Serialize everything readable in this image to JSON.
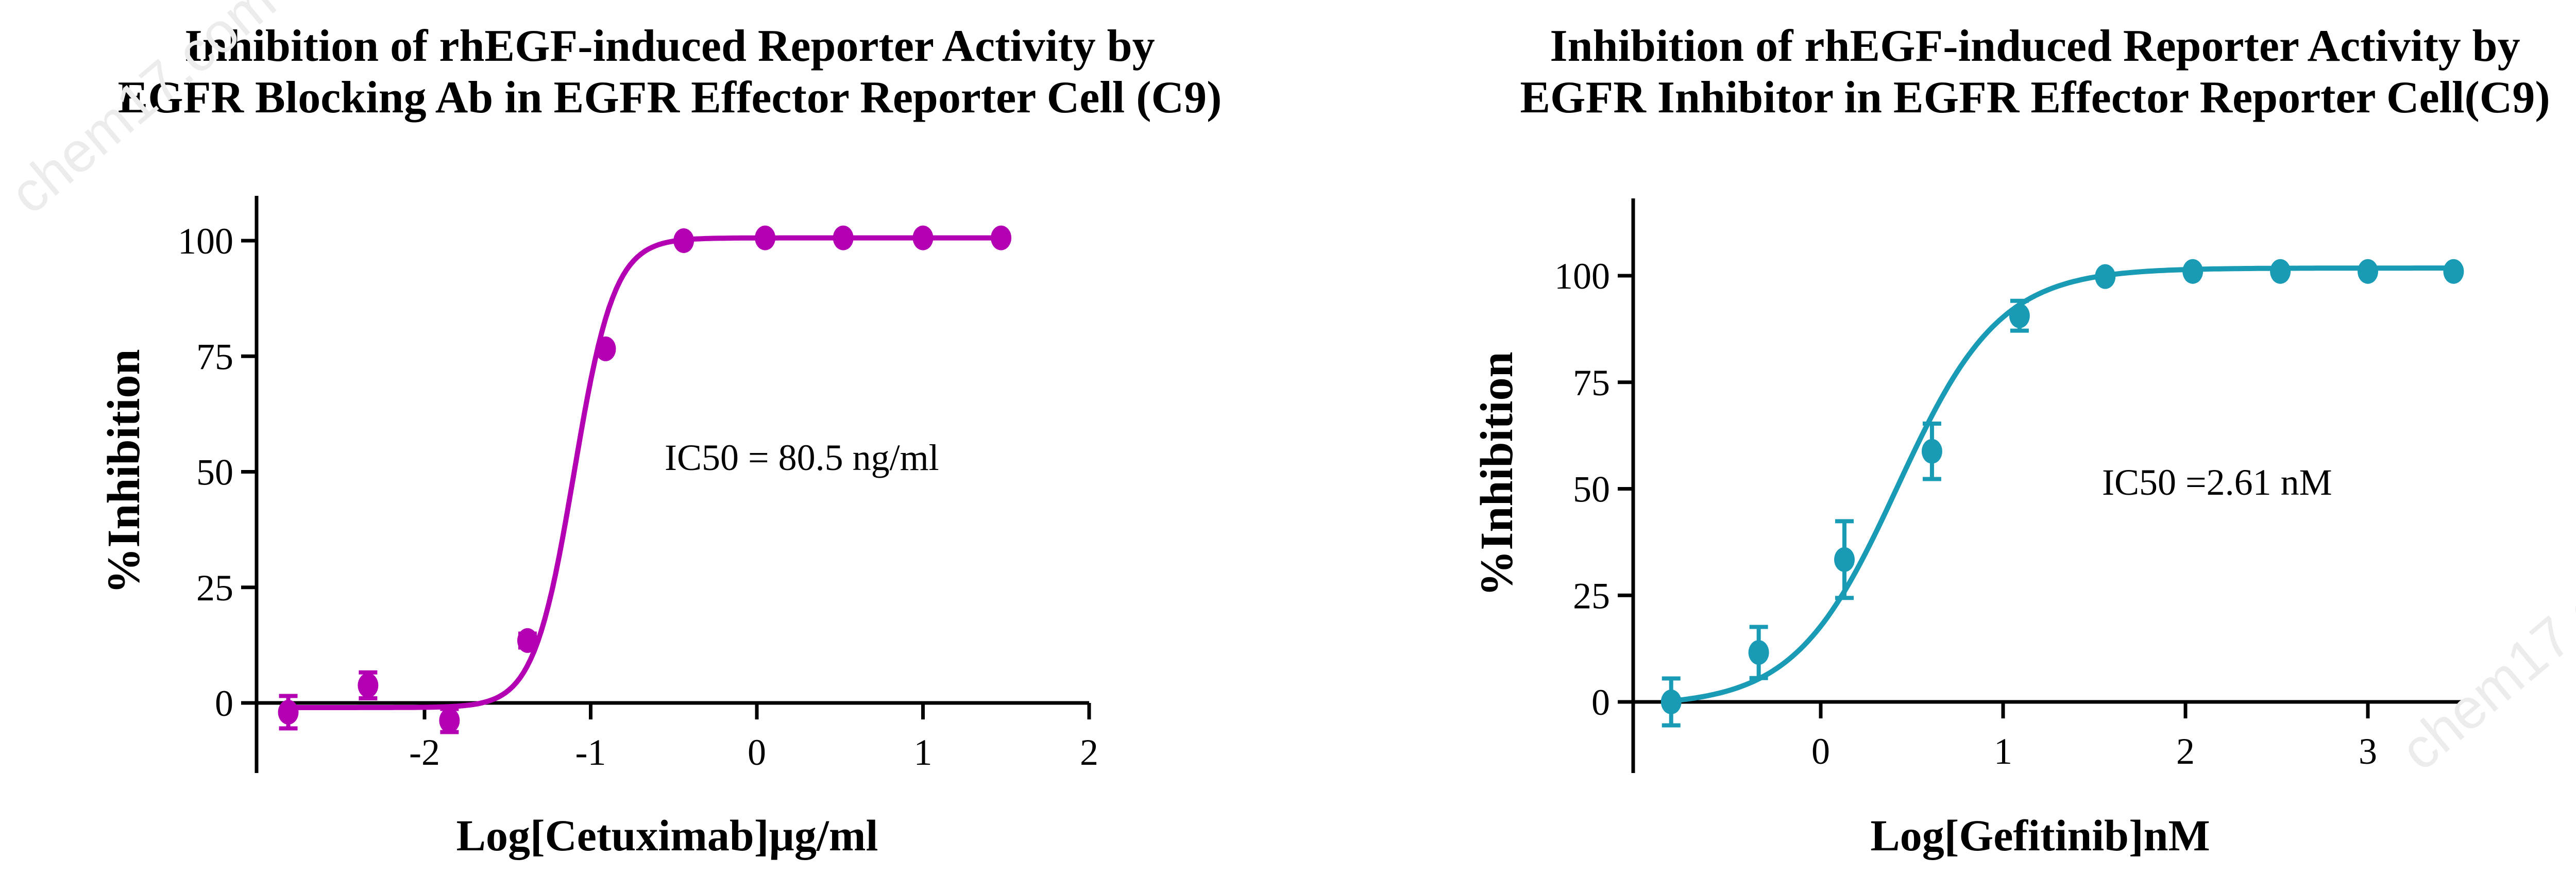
{
  "charts": [
    {
      "title_line1": "Inhibition of rhEGF-induced Reporter Activity by",
      "title_line2": "EGFR Blocking Ab in EGFR Effector Reporter Cell (C9)",
      "xlabel": "Log[Cetuximab]µg/ml",
      "ylabel": "%Inhibition",
      "annotation": "IC50 = 80.5 ng/ml",
      "color": "#B300B3"
    },
    {
      "title_line1": "Inhibition of rhEGF-induced Reporter Activity by",
      "title_line2": "EGFR Inhibitor in EGFR Effector Reporter Cell(C9)",
      "xlabel": "Log[Gefitinib]nM",
      "ylabel": "%Inhibition",
      "annotation": "IC50 =2.61 nM",
      "color": "#1A9BB5"
    }
  ],
  "watermark": "chem17.com",
  "chart_data": [
    {
      "type": "scatter",
      "title": "Inhibition of rhEGF-induced Reporter Activity by EGFR Blocking Ab in EGFR Effector Reporter Cell (C9)",
      "xlabel": "Log[Cetuximab]µg/ml",
      "ylabel": "%Inhibition",
      "xlim": [
        -3.1,
        2
      ],
      "ylim": [
        -8,
        110
      ],
      "xticks": [
        -2,
        -1,
        0,
        1,
        2
      ],
      "yticks": [
        0,
        25,
        50,
        75,
        100
      ],
      "x": [
        -2.82,
        -2.34,
        -1.85,
        -1.38,
        -0.91,
        -0.44,
        0.05,
        0.52,
        1.0,
        1.47
      ],
      "y": [
        -2,
        3.8,
        -3.8,
        13.5,
        76.6,
        100,
        100.6,
        100.6,
        100.6,
        100.6
      ],
      "error": [
        3.5,
        2.8,
        2.5,
        1.5,
        0,
        0,
        0,
        0,
        0,
        0
      ],
      "fit": "4-parameter logistic",
      "annotation": "IC50 = 80.5 ng/ml",
      "grid": false,
      "legend": null
    },
    {
      "type": "scatter",
      "title": "Inhibition of rhEGF-induced Reporter Activity by EGFR Inhibitor in EGFR Effector Reporter Cell(C9)",
      "xlabel": "Log[Gefitinib]nM",
      "ylabel": "%Inhibition",
      "xlim": [
        -1,
        3.5
      ],
      "ylim": [
        -8,
        110
      ],
      "xticks": [
        0,
        1,
        2,
        3
      ],
      "yticks": [
        0,
        25,
        50,
        75,
        100
      ],
      "x": [
        -0.82,
        -0.34,
        0.13,
        0.61,
        1.09,
        1.56,
        2.04,
        2.52,
        3.0,
        3.47
      ],
      "y": [
        0,
        11.6,
        33.4,
        58.8,
        90.6,
        99.8,
        101,
        101,
        101,
        101
      ],
      "error": [
        5.5,
        6,
        9,
        6.5,
        3.5,
        0,
        0,
        0,
        0,
        0
      ],
      "fit": "4-parameter logistic",
      "annotation": "IC50 =2.61 nM",
      "grid": false,
      "legend": null
    }
  ]
}
